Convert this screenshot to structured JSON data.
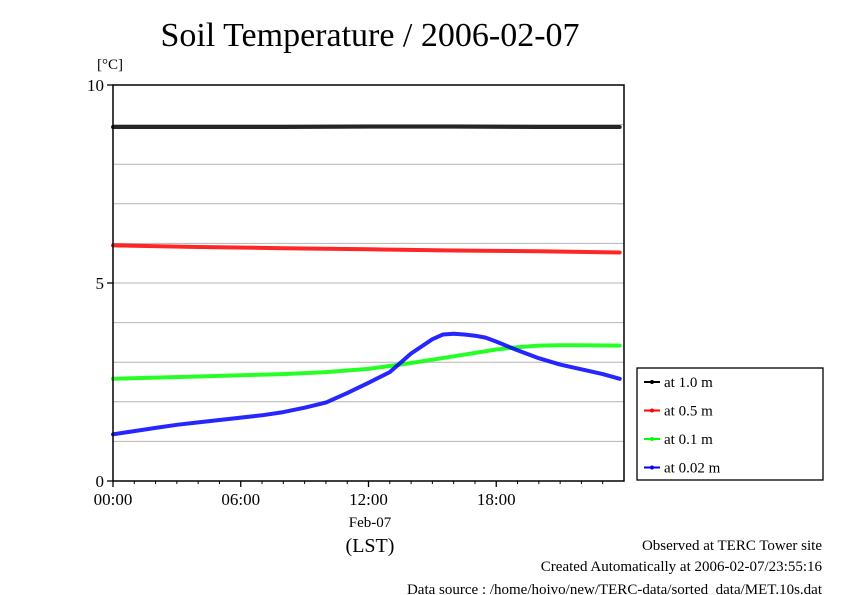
{
  "chart_data": {
    "type": "line",
    "title": "Soil Temperature / 2006-02-07",
    "y_unit": "[°C]",
    "ylim": [
      0,
      10
    ],
    "y_ticks": [
      0,
      5,
      10
    ],
    "y_minor_step": 1,
    "xlim_hours": [
      0,
      24
    ],
    "x_ticks": [
      {
        "hour": 0,
        "label": "00:00"
      },
      {
        "hour": 6,
        "label": "06:00"
      },
      {
        "hour": 12,
        "label": "12:00"
      },
      {
        "hour": 18,
        "label": "18:00"
      }
    ],
    "x_date_label": "Feb-07",
    "x_axis_label": "(LST)",
    "grid": true,
    "legend_position": "right",
    "series": [
      {
        "name": "at 1.0 m",
        "color": "#000000",
        "x": [
          0,
          4,
          8,
          12,
          16,
          20,
          23.8
        ],
        "y": [
          8.94,
          8.94,
          8.94,
          8.95,
          8.95,
          8.94,
          8.94
        ]
      },
      {
        "name": "at 0.5 m",
        "color": "#ff0000",
        "x": [
          0,
          4,
          8,
          12,
          16,
          20,
          23.8
        ],
        "y": [
          5.95,
          5.91,
          5.88,
          5.85,
          5.82,
          5.8,
          5.77
        ]
      },
      {
        "name": "at 0.1 m",
        "color": "#00ff00",
        "x": [
          0,
          2,
          4,
          6,
          8,
          10,
          12,
          14,
          16,
          18,
          19,
          20,
          21,
          22,
          23.8
        ],
        "y": [
          2.58,
          2.61,
          2.64,
          2.67,
          2.7,
          2.75,
          2.83,
          2.98,
          3.15,
          3.32,
          3.38,
          3.42,
          3.43,
          3.43,
          3.42
        ]
      },
      {
        "name": "at 0.02 m",
        "color": "#0000ff",
        "x": [
          0,
          1,
          2,
          3,
          4,
          5,
          6,
          7,
          8,
          9,
          10,
          11,
          12,
          13,
          14,
          15,
          15.5,
          16,
          16.5,
          17,
          17.5,
          18,
          19,
          20,
          21,
          22,
          23,
          23.8
        ],
        "y": [
          1.18,
          1.26,
          1.34,
          1.42,
          1.48,
          1.54,
          1.6,
          1.66,
          1.74,
          1.85,
          1.98,
          2.22,
          2.48,
          2.75,
          3.22,
          3.58,
          3.7,
          3.72,
          3.7,
          3.67,
          3.62,
          3.52,
          3.3,
          3.1,
          2.94,
          2.82,
          2.7,
          2.58
        ]
      }
    ]
  },
  "footer": {
    "line1": "Observed at TERC Tower site",
    "line2": "Created Automatically at 2006-02-07/23:55:16",
    "line3": "Data source : /home/hoivo/new/TERC-data/sorted_data/MET.10s.dat"
  }
}
